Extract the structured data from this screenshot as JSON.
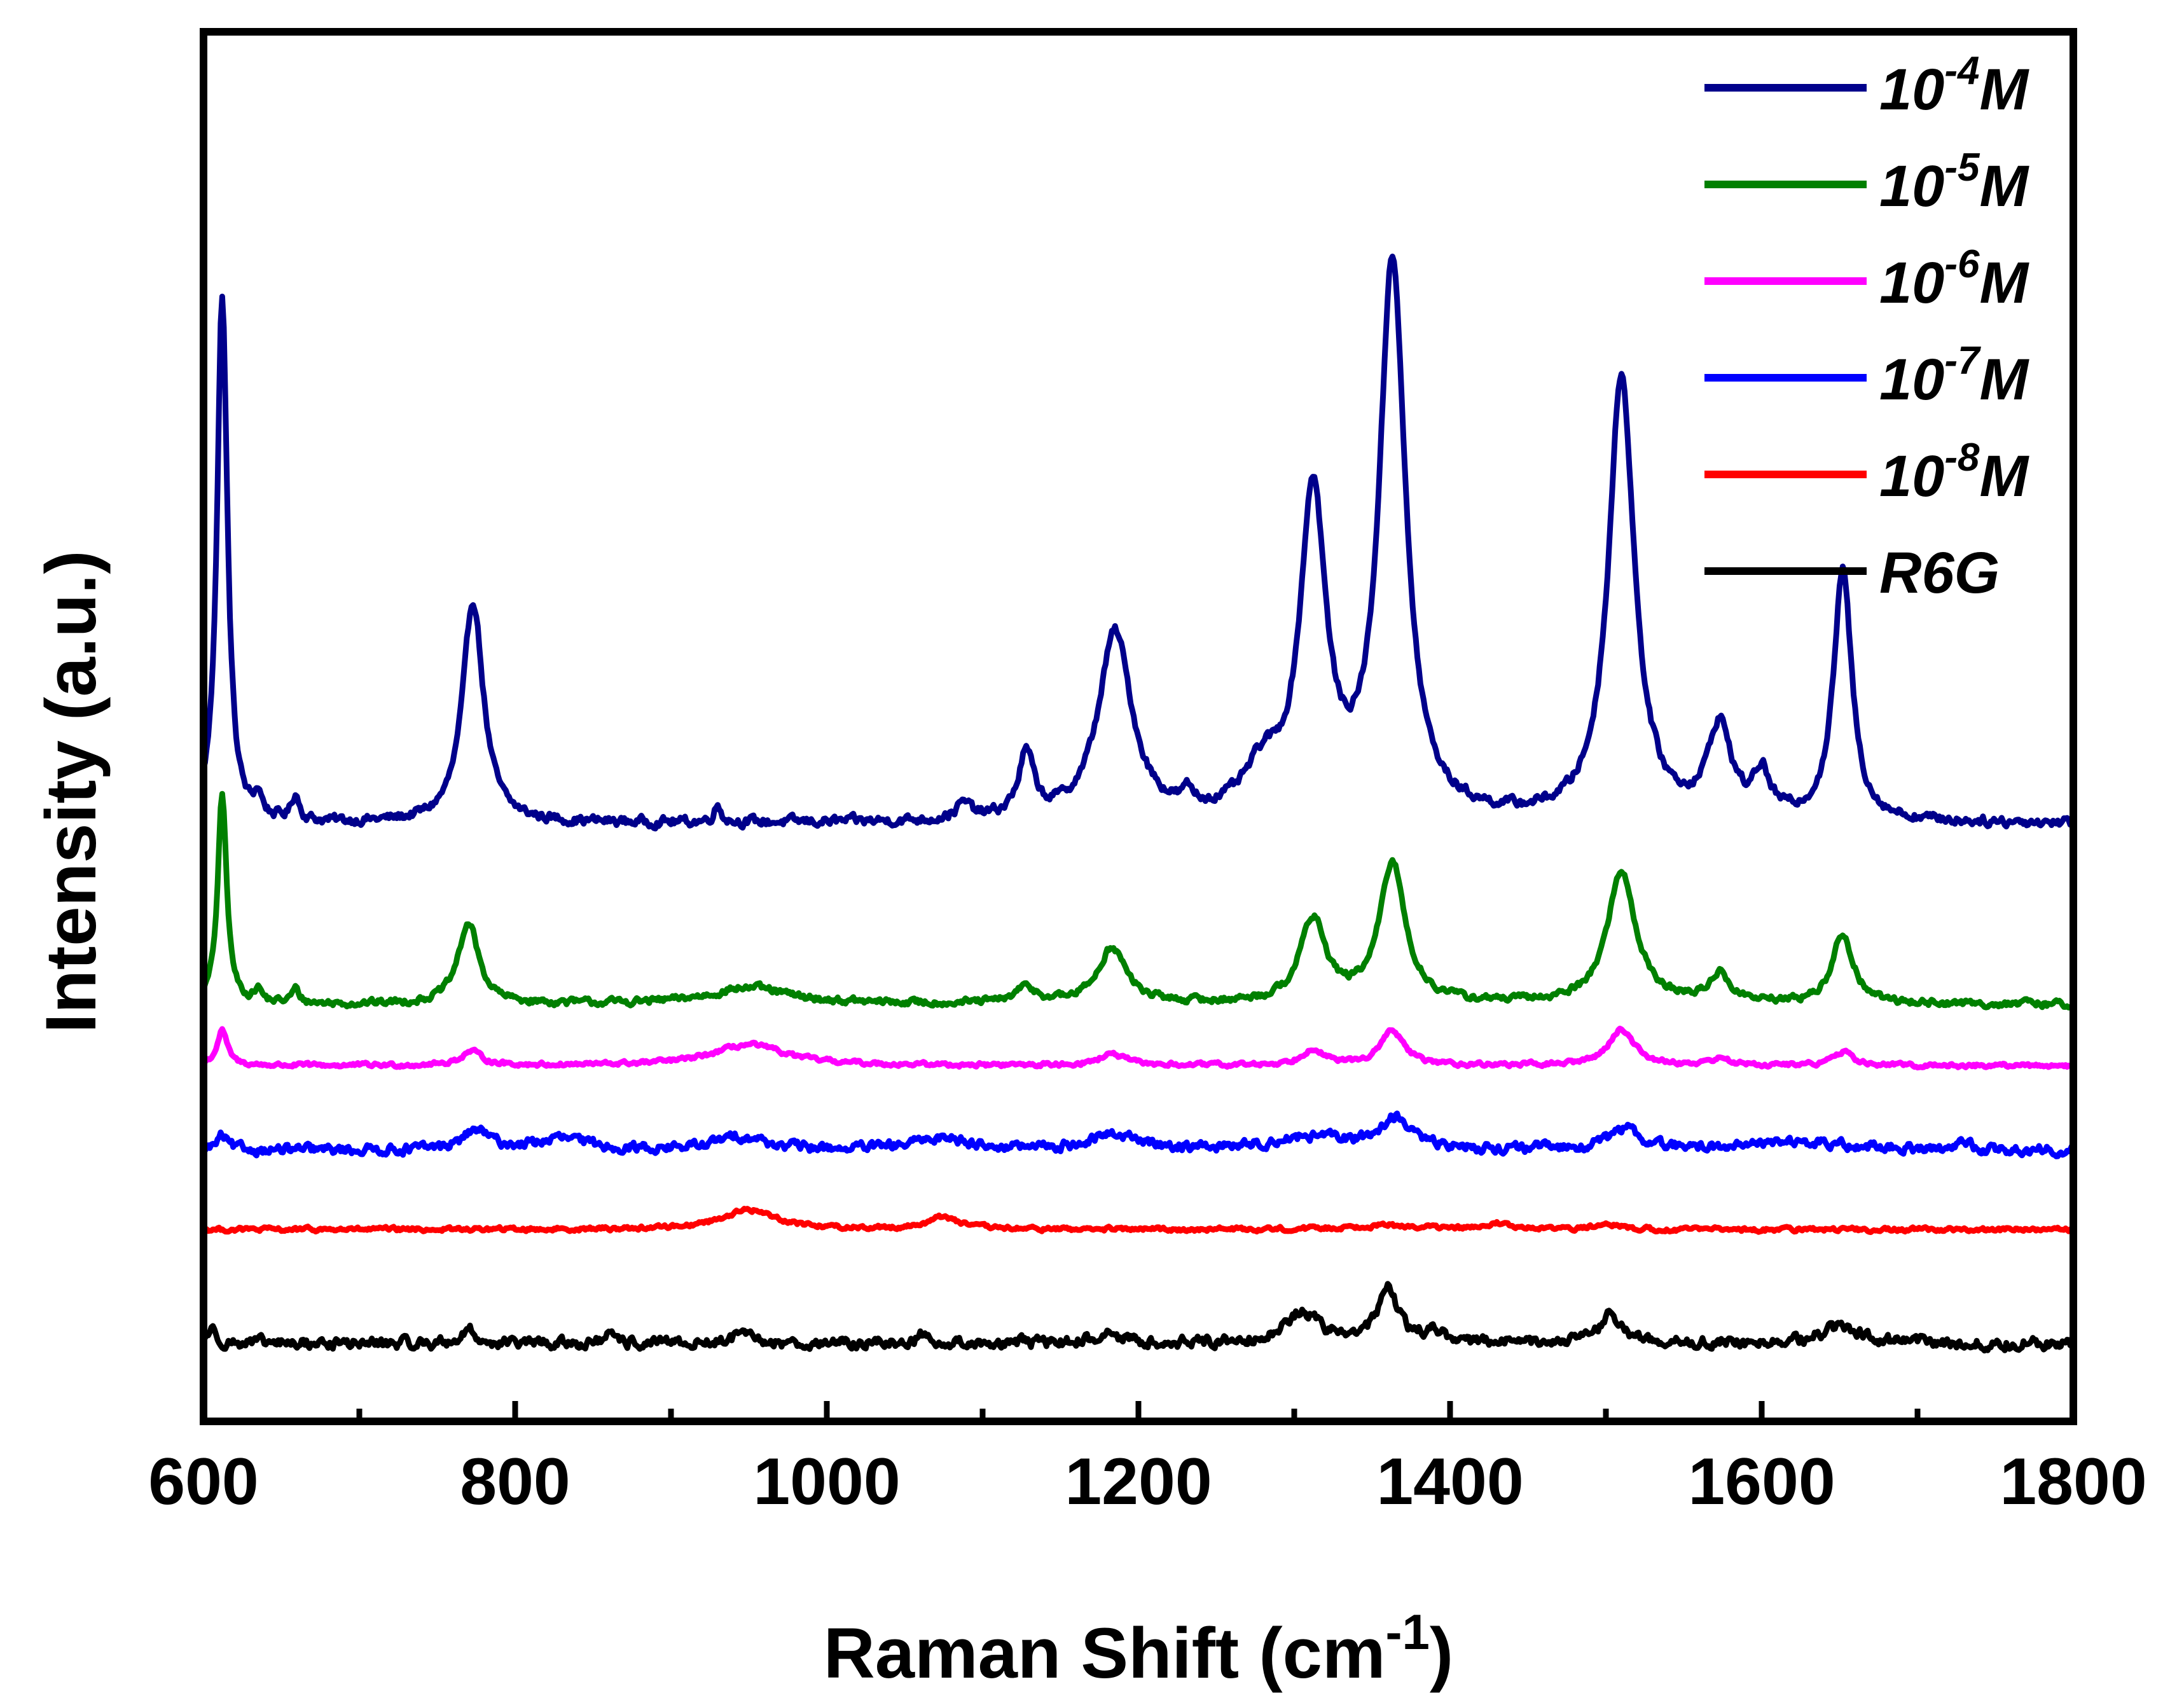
{
  "chart_data": {
    "type": "line",
    "title": "",
    "xlabel": "Raman Shift (cm",
    "xlabel_sup": "-1",
    "xlabel_end": ")",
    "ylabel": "Intensity (a.u.)",
    "xlim": [
      600,
      1800
    ],
    "ylim": [
      0,
      100
    ],
    "x_ticks": [
      600,
      800,
      1000,
      1200,
      1400,
      1600,
      1800
    ],
    "x_tick_labels": [
      "600",
      "800",
      "1000",
      "1200",
      "1400",
      "1600",
      "1800"
    ],
    "y_ticks_shown": false,
    "grid": false,
    "legend_position": "top-right",
    "series": [
      {
        "name": "10-4M",
        "base": "10",
        "exp": "-4",
        "unit": "M",
        "color": "#00008B",
        "baseline": 43.0,
        "noise": 0.35,
        "peaks": [
          [
            612,
            38,
            4
          ],
          [
            635,
            1.5,
            3
          ],
          [
            659,
            1.8,
            3
          ],
          [
            773,
            16,
            8
          ],
          [
            930,
            1.2,
            3
          ],
          [
            1088,
            1.1,
            6
          ],
          [
            1128,
            4.5,
            6
          ],
          [
            1185,
            13.5,
            13
          ],
          [
            1232,
            1.0,
            4
          ],
          [
            1280,
            3.0,
            14
          ],
          [
            1312,
            23,
            10
          ],
          [
            1363,
            40,
            10
          ],
          [
            1510,
            32,
            10
          ],
          [
            1573,
            6.5,
            9
          ],
          [
            1600,
            3.0,
            6
          ],
          [
            1652,
            18,
            7
          ]
        ]
      },
      {
        "name": "10-5M",
        "base": "10",
        "exp": "-5",
        "unit": "M",
        "color": "#008000",
        "baseline": 30.0,
        "noise": 0.25,
        "peaks": [
          [
            612,
            15,
            3.5
          ],
          [
            635,
            0.9,
            3
          ],
          [
            659,
            1.0,
            3
          ],
          [
            770,
            5.8,
            8
          ],
          [
            950,
            1.2,
            30
          ],
          [
            1128,
            1.1,
            8
          ],
          [
            1183,
            4.0,
            11
          ],
          [
            1312,
            6.0,
            10
          ],
          [
            1363,
            10.0,
            10
          ],
          [
            1510,
            9.5,
            11
          ],
          [
            1573,
            2.0,
            8
          ],
          [
            1652,
            5.0,
            8
          ]
        ]
      },
      {
        "name": "10-6M",
        "base": "10",
        "exp": "-6",
        "unit": "M",
        "color": "#FF00FF",
        "baseline": 25.6,
        "noise": 0.15,
        "peaks": [
          [
            612,
            2.5,
            4
          ],
          [
            772,
            1.0,
            8
          ],
          [
            950,
            1.5,
            28
          ],
          [
            1183,
            0.8,
            10
          ],
          [
            1312,
            1.2,
            8
          ],
          [
            1363,
            2.5,
            9
          ],
          [
            1510,
            2.6,
            10
          ],
          [
            1573,
            0.5,
            7
          ],
          [
            1652,
            1.0,
            7
          ]
        ]
      },
      {
        "name": "10-7M",
        "base": "10",
        "exp": "-7",
        "unit": "M",
        "color": "#0000FF",
        "baseline": 19.5,
        "noise": 0.35,
        "peaks": [
          [
            612,
            1.0,
            4
          ],
          [
            775,
            1.4,
            10
          ],
          [
            830,
            0.8,
            20
          ],
          [
            945,
            1.0,
            18
          ],
          [
            1075,
            0.9,
            20
          ],
          [
            1185,
            1.1,
            18
          ],
          [
            1310,
            0.9,
            30
          ],
          [
            1365,
            2.2,
            12
          ],
          [
            1512,
            1.5,
            12
          ],
          [
            1620,
            0.6,
            40
          ],
          [
            1728,
            0.8,
            4
          ]
        ]
      },
      {
        "name": "10-8M",
        "base": "10",
        "exp": "-8",
        "unit": "M",
        "color": "#FF0000",
        "baseline": 13.8,
        "noise": 0.15,
        "peaks": [
          [
            950,
            1.4,
            22
          ],
          [
            1075,
            0.9,
            12
          ],
          [
            1360,
            0.3,
            30
          ],
          [
            1432,
            0.4,
            8
          ],
          [
            1500,
            0.6,
            6
          ]
        ]
      },
      {
        "name": "R6G",
        "color": "#000000",
        "baseline": 5.6,
        "noise": 0.4,
        "peaks": [
          [
            605,
            1.0,
            4
          ],
          [
            770,
            1.0,
            5
          ],
          [
            860,
            0.5,
            4
          ],
          [
            945,
            0.6,
            8
          ],
          [
            1062,
            0.6,
            5
          ],
          [
            1180,
            0.6,
            12
          ],
          [
            1305,
            2.2,
            14
          ],
          [
            1360,
            3.8,
            8
          ],
          [
            1390,
            0.8,
            8
          ],
          [
            1503,
            2.0,
            9
          ],
          [
            1650,
            1.2,
            15
          ]
        ]
      }
    ]
  }
}
